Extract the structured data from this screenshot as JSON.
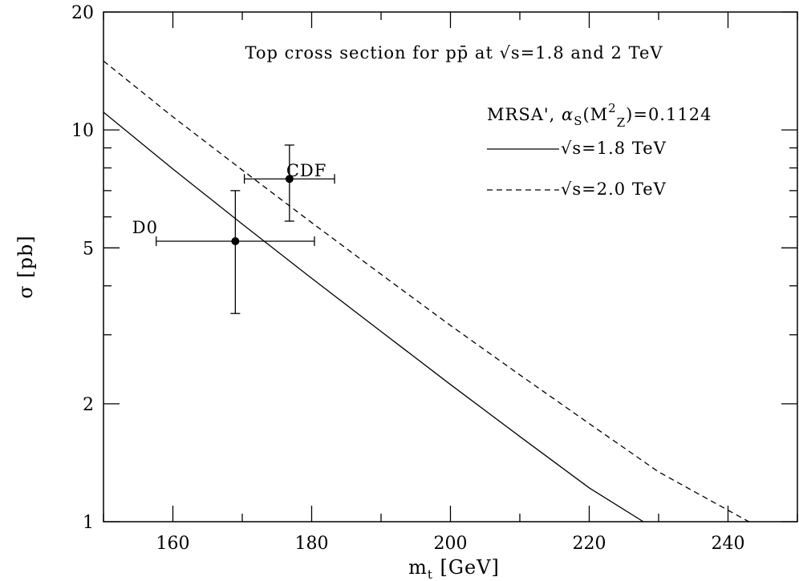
{
  "chart_data": {
    "type": "line",
    "title": "Top cross section for pp̄ at √s=1.8 and 2 TeV",
    "xlabel": {
      "main": "m",
      "sub": "t",
      "unit": " [GeV]"
    },
    "ylabel": "σ [pb]",
    "xlim": [
      150,
      250
    ],
    "ylim": [
      1,
      20
    ],
    "yscale": "log",
    "xticks": [
      160,
      180,
      200,
      220,
      240
    ],
    "yticks": [
      1,
      2,
      5,
      10,
      20
    ],
    "legend": {
      "header": {
        "pre": "MRSA',  ",
        "alpha": "α",
        "s": "S",
        "open": "(M",
        "sup": "2",
        "sub": "Z",
        "close": ")=0.1124"
      },
      "placement": "top-right"
    },
    "series": [
      {
        "name": "√s=1.8 TeV",
        "style": "solid",
        "x": [
          150,
          160,
          170,
          180,
          190,
          200,
          210,
          220,
          227.8
        ],
        "y": [
          11.1,
          7.95,
          5.75,
          4.18,
          3.06,
          2.24,
          1.65,
          1.22,
          1.0
        ]
      },
      {
        "name": "√s=2.0 TeV",
        "style": "dashed",
        "x": [
          150,
          160,
          170,
          180,
          190,
          200,
          210,
          220,
          230,
          243
        ],
        "y": [
          15.0,
          10.8,
          7.9,
          5.8,
          4.28,
          3.17,
          2.37,
          1.78,
          1.34,
          1.0
        ]
      }
    ],
    "points": [
      {
        "label": "CDF",
        "x": 176.8,
        "y": 7.5,
        "xerr": [
          170.3,
          183.3
        ],
        "yerr": [
          5.85,
          9.15
        ]
      },
      {
        "label": "D0",
        "x": 169.0,
        "y": 5.2,
        "xerr": [
          157.6,
          180.4
        ],
        "yerr": [
          3.4,
          7.0
        ]
      }
    ]
  }
}
